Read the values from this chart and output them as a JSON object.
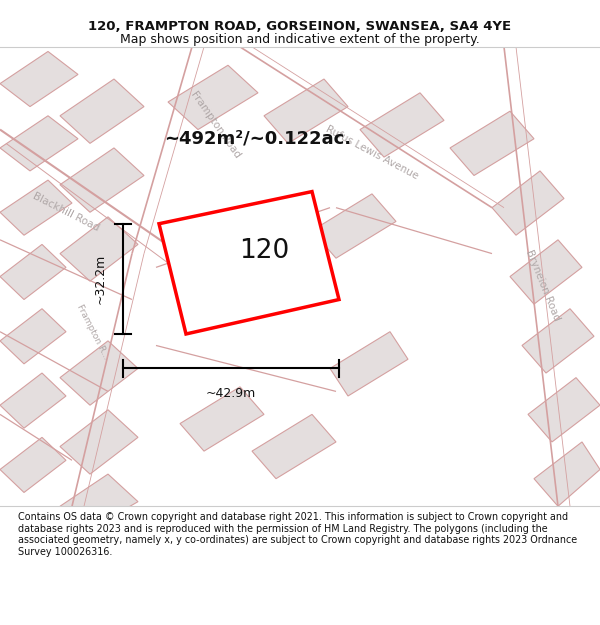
{
  "title_line1": "120, FRAMPTON ROAD, GORSEINON, SWANSEA, SA4 4YE",
  "title_line2": "Map shows position and indicative extent of the property.",
  "footer_text": "Contains OS data © Crown copyright and database right 2021. This information is subject to Crown copyright and database rights 2023 and is reproduced with the permission of HM Land Registry. The polygons (including the associated geometry, namely x, y co-ordinates) are subject to Crown copyright and database rights 2023 Ordnance Survey 100026316.",
  "map_bg": "#f2eded",
  "block_fill": "#e4dede",
  "block_stroke": "#d4a0a0",
  "road_stroke": "#d4a0a0",
  "property_stroke": "#ff0000",
  "property_fill": "#ffffff",
  "property_label": "120",
  "area_text": "~492m²/~0.122ac.",
  "width_text": "~42.9m",
  "height_text": "~32.2m"
}
